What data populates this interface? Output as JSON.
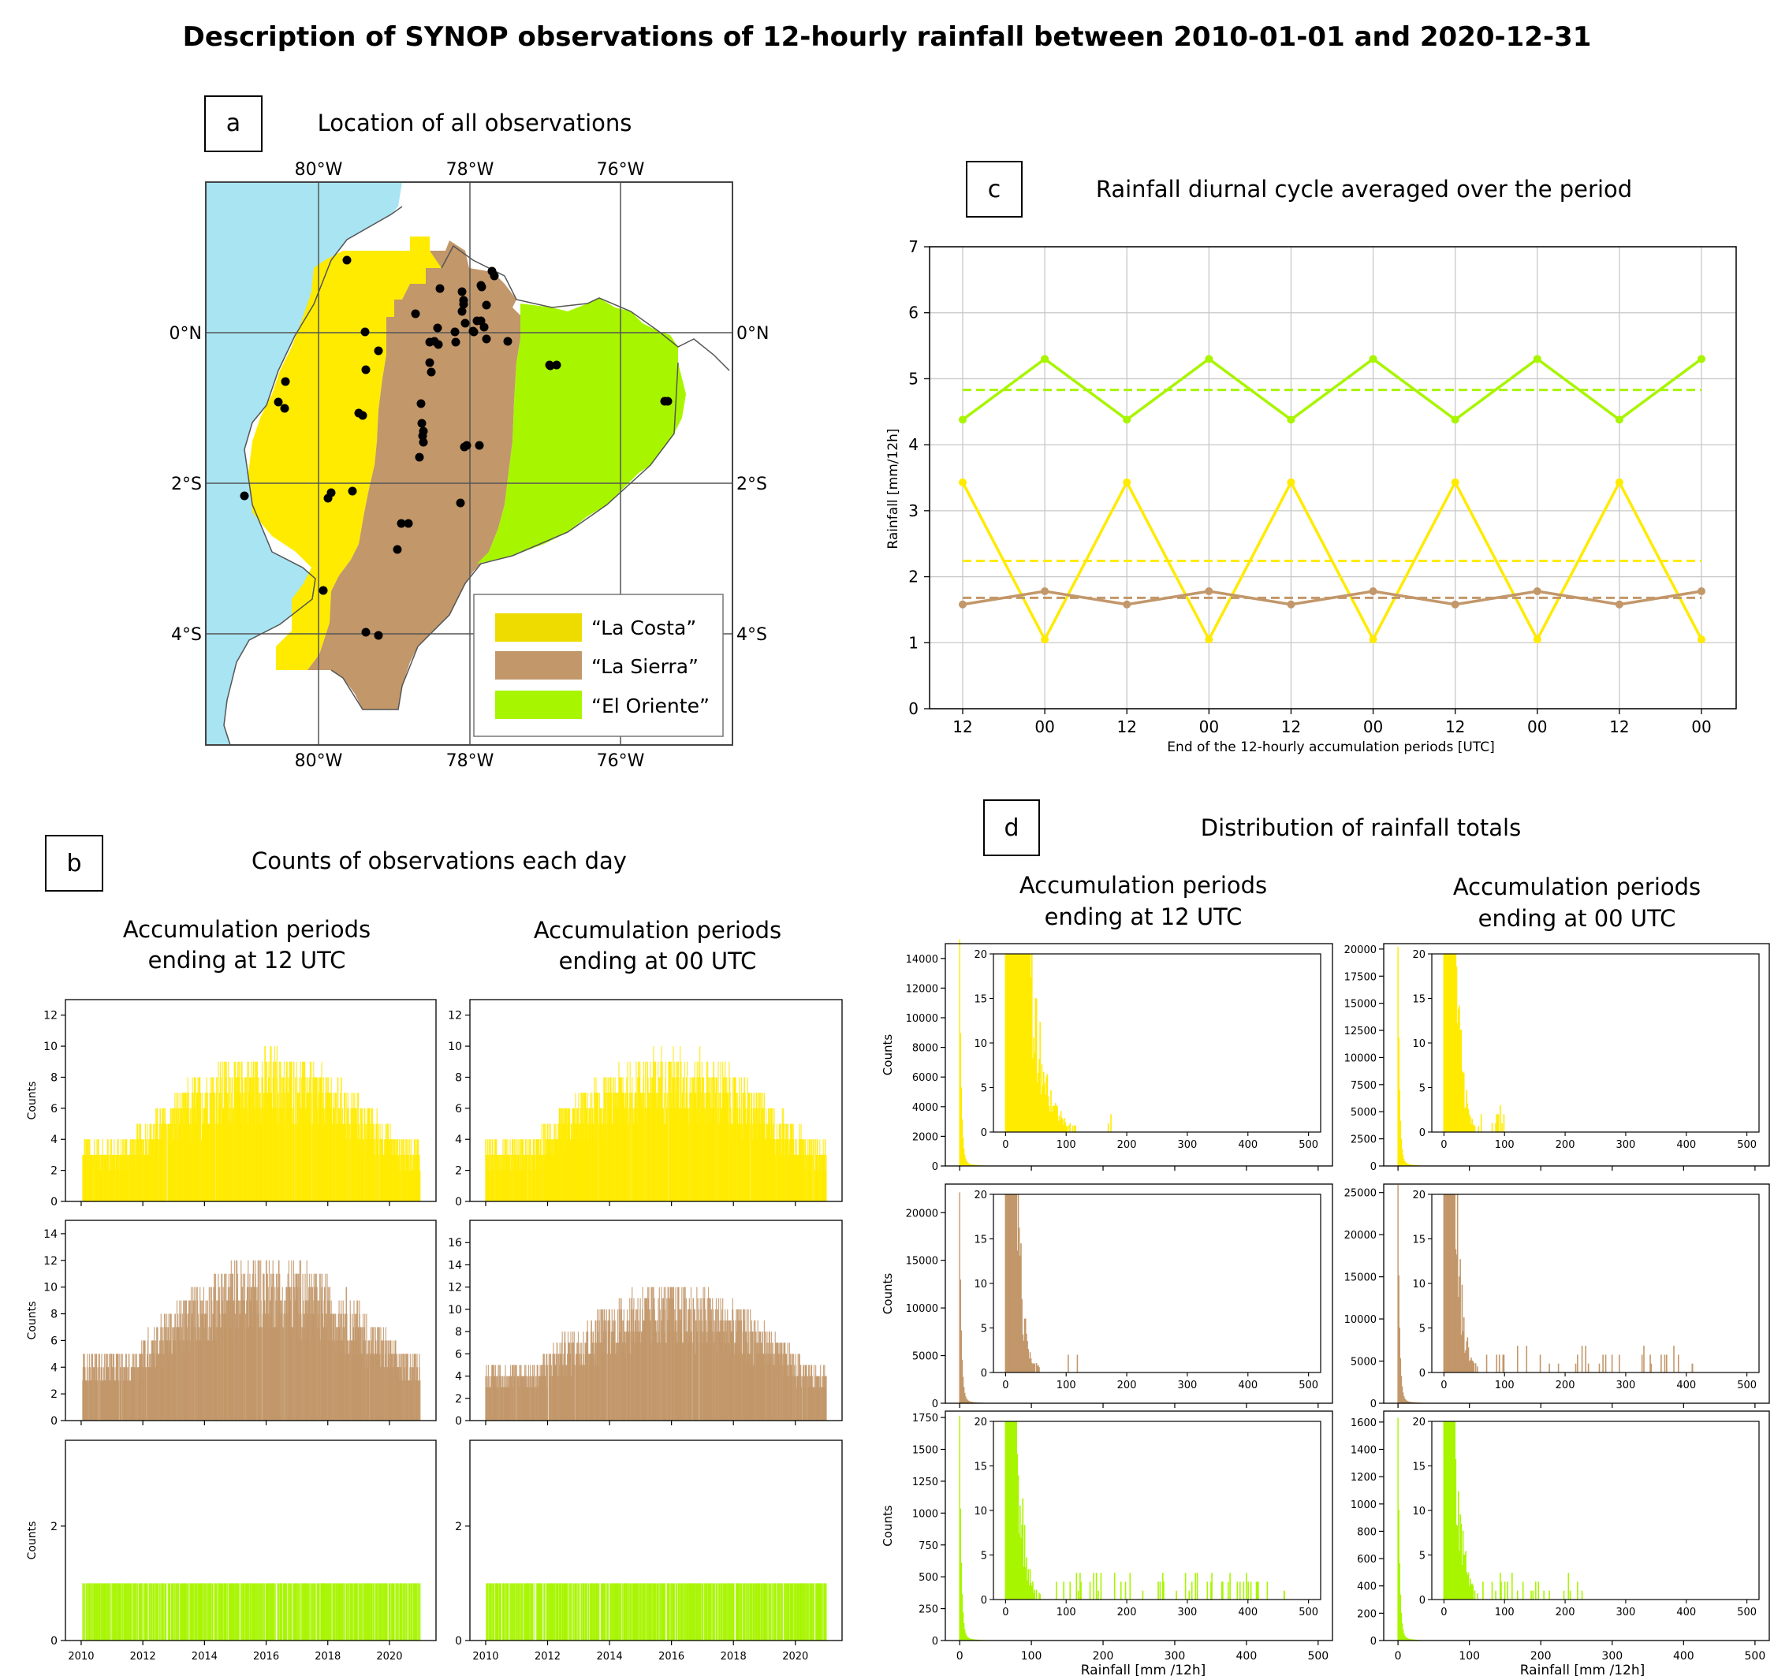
{
  "title": "Description of SYNOP observations of 12-hourly rainfall between 2010-01-01 and 2020-12-31",
  "colors": {
    "costa": "#FFEB00",
    "sierra": "#C2976A",
    "oriente": "#A8F500",
    "sea": "#A8E4F2",
    "costa_legend": "#EEDC00"
  },
  "panel_a": {
    "letter": "a",
    "title": "Location of all observations",
    "top_lon_labels": [
      "80°W",
      "78°W",
      "76°W"
    ],
    "bottom_lon_labels": [
      "80°W",
      "78°W",
      "76°W"
    ],
    "left_lat_labels": [
      "0°N",
      "2°S",
      "4°S"
    ],
    "right_lat_labels": [
      "0°N",
      "2°S",
      "4°S"
    ],
    "legend": [
      "“La Costa”",
      "“La Sierra”",
      "“El Oriente”"
    ]
  },
  "panel_b": {
    "letter": "b",
    "title": "Counts of observations each day",
    "col_titles": [
      [
        "Accumulation periods",
        "ending at 12 UTC"
      ],
      [
        "Accumulation periods",
        "ending at 00 UTC"
      ]
    ],
    "ylabel": "Counts",
    "x_ticks": [
      "2010",
      "2012",
      "2014",
      "2016",
      "2018",
      "2020"
    ],
    "y_ticks": [
      [
        "0",
        "2",
        "4",
        "6",
        "8",
        "10",
        "12"
      ],
      [
        "0",
        "2",
        "4",
        "6",
        "8",
        "10",
        "12"
      ],
      [
        "0",
        "2",
        "4",
        "6",
        "8",
        "10",
        "12",
        "14"
      ],
      [
        "0",
        "2",
        "4",
        "6",
        "8",
        "10",
        "12",
        "14",
        "16"
      ],
      [
        "0",
        "2"
      ],
      [
        "0",
        "2"
      ]
    ]
  },
  "panel_c": {
    "letter": "c",
    "title": "Rainfall diurnal cycle averaged over the period",
    "xlabel": "End of the 12-hourly accumulation periods [UTC]",
    "ylabel": "Rainfall [mm/12h]",
    "x_ticks": [
      "12",
      "00",
      "12",
      "00",
      "12",
      "00",
      "12",
      "00",
      "12",
      "00"
    ],
    "y_ticks": [
      "0",
      "1",
      "2",
      "3",
      "4",
      "5",
      "6",
      "7"
    ]
  },
  "panel_d": {
    "letter": "d",
    "title": "Distribution of rainfall totals",
    "col_titles": [
      [
        "Accumulation periods",
        "ending at 12 UTC"
      ],
      [
        "Accumulation periods",
        "ending at 00 UTC"
      ]
    ],
    "ylabel": "Counts",
    "xlabel": "Rainfall [mm /12h]",
    "x_ticks": [
      "0",
      "100",
      "200",
      "300",
      "400",
      "500"
    ],
    "inset_y_ticks": [
      "0",
      "5",
      "10",
      "15",
      "20"
    ],
    "main_y_ticks": [
      [
        "0",
        "2000",
        "4000",
        "6000",
        "8000",
        "10000",
        "12000",
        "14000"
      ],
      [
        "0",
        "2500",
        "5000",
        "7500",
        "10000",
        "12500",
        "15000",
        "17500",
        "20000"
      ],
      [
        "0",
        "5000",
        "10000",
        "15000",
        "20000"
      ],
      [
        "0",
        "5000",
        "10000",
        "15000",
        "20000",
        "25000"
      ],
      [
        "0",
        "250",
        "500",
        "750",
        "1000",
        "1250",
        "1500",
        "1750"
      ],
      [
        "0",
        "200",
        "400",
        "600",
        "800",
        "1000",
        "1200",
        "1400",
        "1600"
      ]
    ]
  },
  "chart_data": [
    {
      "type": "line",
      "panel": "c",
      "x": [
        "12",
        "00",
        "12",
        "00",
        "12",
        "00",
        "12",
        "00",
        "12",
        "00"
      ],
      "ylim": [
        0,
        7
      ],
      "grid": true,
      "series": [
        {
          "region": "oriente",
          "values": [
            4.38,
            5.3,
            4.38,
            5.3,
            4.38,
            5.3,
            4.38,
            5.3,
            4.38,
            5.3
          ],
          "mean": 4.83
        },
        {
          "region": "costa",
          "values": [
            3.43,
            1.05,
            3.43,
            1.05,
            3.43,
            1.05,
            3.43,
            1.05,
            3.43,
            1.05
          ],
          "mean": 2.24
        },
        {
          "region": "sierra",
          "values": [
            1.58,
            1.78,
            1.58,
            1.78,
            1.58,
            1.78,
            1.58,
            1.78,
            1.58,
            1.78
          ],
          "mean": 1.68
        }
      ]
    },
    {
      "type": "bar",
      "panel": "b",
      "x_range": [
        2010,
        2021
      ],
      "series": [
        {
          "region": "costa",
          "period": "12 UTC",
          "ylim": [
            0,
            13
          ],
          "max": 11
        },
        {
          "region": "costa",
          "period": "00 UTC",
          "ylim": [
            0,
            13
          ],
          "max": 11
        },
        {
          "region": "sierra",
          "period": "12 UTC",
          "ylim": [
            0,
            15
          ],
          "max": 14
        },
        {
          "region": "sierra",
          "period": "00 UTC",
          "ylim": [
            0,
            18
          ],
          "max": 14
        },
        {
          "region": "oriente",
          "period": "12 UTC",
          "ylim": [
            0,
            3.5
          ],
          "max": 1
        },
        {
          "region": "oriente",
          "period": "00 UTC",
          "ylim": [
            0,
            3.5
          ],
          "max": 1
        }
      ]
    },
    {
      "type": "bar",
      "panel": "d",
      "x_range": [
        -20,
        520
      ],
      "series": [
        {
          "region": "costa",
          "period": "12 UTC",
          "ylim": [
            0,
            15000
          ],
          "max_count": 15000,
          "max_rain": 180
        },
        {
          "region": "costa",
          "period": "00 UTC",
          "ylim": [
            0,
            20500
          ],
          "max_count": 19800,
          "max_rain": 110
        },
        {
          "region": "sierra",
          "period": "12 UTC",
          "ylim": [
            0,
            23000
          ],
          "max_count": 21700,
          "max_rain": 120
        },
        {
          "region": "sierra",
          "period": "00 UTC",
          "ylim": [
            0,
            26000
          ],
          "max_count": 25400,
          "max_rain": 410
        },
        {
          "region": "oriente",
          "period": "12 UTC",
          "ylim": [
            0,
            1800
          ],
          "max_count": 1730,
          "max_rain": 460
        },
        {
          "region": "oriente",
          "period": "00 UTC",
          "ylim": [
            0,
            1680
          ],
          "max_count": 1600,
          "max_rain": 240
        }
      ]
    }
  ]
}
